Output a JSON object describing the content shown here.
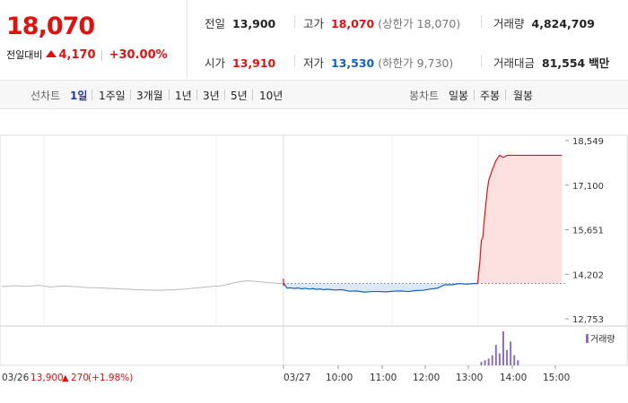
{
  "quote": {
    "price": "18,070",
    "change_label": "전일대비",
    "change_value": "4,170",
    "change_pct": "+30.00%"
  },
  "info": {
    "prev_close_label": "전일",
    "prev_close": "13,900",
    "high_label": "고가",
    "high": "18,070",
    "upper_limit": "(상한가 18,070)",
    "volume_label": "거래량",
    "volume": "4,824,709",
    "open_label": "시가",
    "open": "13,910",
    "low_label": "저가",
    "low": "13,530",
    "lower_limit": "(하한가 9,730)",
    "amount_label": "거래대금",
    "amount": "81,554",
    "amount_unit": "백만"
  },
  "toolbar": {
    "line_label": "선차트",
    "periods": [
      "1일",
      "1주일",
      "3개월",
      "1년",
      "3년",
      "5년",
      "10년"
    ],
    "active_period": "1일",
    "candle_label": "봉차트",
    "candles": [
      "일봉",
      "주봉",
      "월봉"
    ]
  },
  "colors": {
    "up": "#e0120f",
    "down": "#1261c4",
    "volume": "#8c6fbf",
    "prev_day": "#bbbbbb"
  },
  "chart_data": {
    "type": "line",
    "y_ticks": [
      "18,549",
      "17,100",
      "15,651",
      "14,202",
      "12,753"
    ],
    "ylim": [
      12753,
      18549
    ],
    "reference_price": 13900,
    "x_ticks": [
      "03/27",
      "10:00",
      "11:00",
      "12:00",
      "13:00",
      "14:00",
      "15:00"
    ],
    "prev_day_date": "03/26",
    "prev_day_close": "13,900",
    "prev_day_change": "270",
    "prev_day_pct": "(+1.98%)",
    "volume_legend": "거래량",
    "prev_day_series": [
      13800,
      13830,
      13810,
      13840,
      13790,
      13820,
      13800,
      13770,
      13760,
      13740,
      13720,
      13700,
      13690,
      13680,
      13700,
      13720,
      13760,
      13800,
      13830,
      13930,
      13990,
      13960,
      13920,
      13900
    ],
    "today_series": {
      "x": [
        "09:00",
        "09:05",
        "09:10",
        "09:15",
        "09:20",
        "09:25",
        "09:30",
        "09:35",
        "09:40",
        "09:45",
        "09:50",
        "09:55",
        "10:00",
        "10:10",
        "10:20",
        "10:30",
        "10:40",
        "10:50",
        "11:00",
        "11:10",
        "11:20",
        "11:30",
        "11:40",
        "11:50",
        "12:00",
        "12:10",
        "12:20",
        "12:30",
        "12:40",
        "12:50",
        "13:00",
        "13:10",
        "13:20",
        "13:25",
        "13:26",
        "13:28",
        "13:30",
        "13:32",
        "13:34",
        "13:36",
        "13:38",
        "13:40",
        "13:45",
        "13:50",
        "13:55",
        "14:00",
        "14:05",
        "14:10",
        "14:20",
        "14:30",
        "14:40",
        "14:50",
        "15:00",
        "15:10",
        "15:20"
      ],
      "y": [
        13910,
        13750,
        13760,
        13740,
        13755,
        13730,
        13745,
        13720,
        13735,
        13710,
        13725,
        13700,
        13715,
        13690,
        13700,
        13650,
        13660,
        13620,
        13640,
        13640,
        13630,
        13650,
        13660,
        13640,
        13670,
        13680,
        13720,
        13750,
        13860,
        13860,
        13900,
        13880,
        13900,
        13900,
        14150,
        14600,
        15300,
        15400,
        15950,
        16450,
        16900,
        17250,
        17600,
        17900,
        18070,
        18000,
        18070,
        18070,
        18070,
        18070,
        18070,
        18070,
        18070,
        18070,
        18070
      ]
    },
    "volume_series": {
      "x": [
        "13:30",
        "13:35",
        "13:40",
        "13:45",
        "13:50",
        "13:55",
        "14:00",
        "14:05",
        "14:10",
        "14:15",
        "14:20"
      ],
      "y": [
        2,
        3,
        4,
        6,
        12,
        7,
        20,
        9,
        14,
        6,
        3
      ]
    }
  }
}
